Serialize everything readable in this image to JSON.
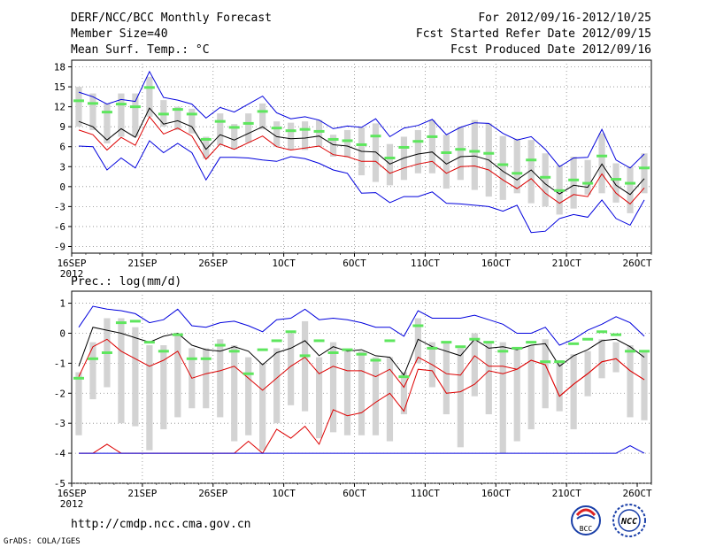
{
  "header": {
    "title": "DERF/NCC/BCC Monthly Forecast",
    "member_size": "Member Size=40",
    "variable": "Mean Surf. Temp.: °C",
    "period": "For 2012/09/16-2012/10/25",
    "started": "Fcst Started Refer Date 2012/09/15",
    "produced": "Fcst Produced Date 2012/09/16"
  },
  "footer": {
    "url": "http://cmdp.ncc.cma.gov.cn",
    "grads": "GrADS: COLA/IGES",
    "logo_bcc": "BCC",
    "logo_ncc": "NCC"
  },
  "colors": {
    "max": "#0000dd",
    "min": "#dd0000",
    "mean": "#000000",
    "ensemble": "#5ee65e",
    "box": "#d3d3d3",
    "grid": "#888888"
  },
  "chart_data": [
    {
      "type": "line",
      "title": "Mean Surf. Temp.: °C",
      "ylim": [
        -10,
        19
      ],
      "yticks": [
        18,
        15,
        12,
        9,
        6,
        3,
        0,
        -3,
        -6,
        -9
      ],
      "xticks": [
        {
          "day": 0,
          "label": "16SEP",
          "sub": "2012"
        },
        {
          "day": 5,
          "label": "21SEP"
        },
        {
          "day": 10,
          "label": "26SEP"
        },
        {
          "day": 15,
          "label": "1OCT"
        },
        {
          "day": 20,
          "label": "6OCT"
        },
        {
          "day": 25,
          "label": "11OCT"
        },
        {
          "day": 30,
          "label": "16OCT"
        },
        {
          "day": 35,
          "label": "21OCT"
        },
        {
          "day": 40,
          "label": "26OCT"
        }
      ],
      "max": [
        14.2,
        13.5,
        12.4,
        13.1,
        12.8,
        17.3,
        13.4,
        13.0,
        12.4,
        10.3,
        11.9,
        11.2,
        12.4,
        13.6,
        11.1,
        10.2,
        10.5,
        10.0,
        8.7,
        9.1,
        8.9,
        10.2,
        7.5,
        8.8,
        9.2,
        10.1,
        7.8,
        8.9,
        9.6,
        9.5,
        8.0,
        7.0,
        7.5,
        5.6,
        3.0,
        4.3,
        4.4,
        8.6,
        4.0,
        2.8,
        4.9
      ],
      "mean": [
        9.8,
        9.0,
        7.0,
        8.7,
        7.4,
        11.8,
        9.4,
        9.9,
        9.0,
        5.6,
        7.8,
        7.0,
        8.0,
        9.0,
        7.5,
        7.2,
        7.3,
        7.6,
        6.3,
        6.1,
        5.3,
        5.2,
        3.4,
        4.3,
        4.9,
        5.2,
        3.4,
        4.5,
        4.6,
        4.0,
        2.3,
        1.0,
        2.5,
        0.4,
        -1.1,
        0.2,
        -0.1,
        3.4,
        0.2,
        -1.2,
        1.2
      ],
      "min": [
        8.5,
        7.8,
        5.5,
        7.4,
        6.2,
        10.5,
        7.9,
        8.8,
        7.6,
        4.1,
        6.4,
        5.6,
        6.6,
        7.6,
        6.0,
        5.5,
        5.8,
        6.1,
        4.8,
        4.5,
        3.8,
        3.8,
        2.0,
        2.8,
        3.4,
        3.8,
        2.0,
        3.0,
        3.1,
        2.5,
        1.0,
        -0.3,
        1.2,
        -1.0,
        -2.5,
        -1.2,
        -1.5,
        1.9,
        -1.0,
        -2.6,
        -0.2
      ],
      "abs_max_line": [
        6.1,
        6.0,
        2.5,
        4.3,
        2.8,
        6.9,
        5.1,
        6.5,
        5.1,
        1.0,
        4.4,
        4.4,
        4.3,
        4.0,
        3.8,
        4.5,
        4.2,
        3.5,
        2.5,
        2.0,
        -1.0,
        -0.9,
        -2.4,
        -1.5,
        -1.5,
        -0.8,
        -2.5,
        -2.6,
        -2.8,
        -3.0,
        -3.7,
        -2.8,
        -6.9,
        -6.7,
        -4.8,
        -4.2,
        -4.6,
        -2.0,
        -4.8,
        -5.8,
        -2.0
      ],
      "box_hi": [
        15.0,
        14.0,
        12.5,
        14.0,
        14.0,
        16.5,
        13.0,
        12.0,
        11.7,
        7.5,
        11.0,
        9.4,
        11.0,
        12.5,
        9.8,
        9.6,
        9.8,
        10.0,
        7.8,
        8.5,
        8.9,
        9.5,
        6.4,
        7.5,
        8.5,
        10.0,
        7.8,
        9.0,
        10.0,
        9.5,
        7.6,
        7.2,
        7.0,
        5.0,
        3.2,
        4.5,
        4.0,
        8.0,
        3.5,
        3.0,
        5.0
      ],
      "box_lo": [
        9.0,
        8.5,
        6.5,
        7.5,
        7.5,
        10.5,
        9.0,
        8.5,
        8.0,
        4.2,
        6.2,
        5.6,
        6.6,
        8.6,
        6.0,
        5.5,
        5.5,
        6.0,
        4.5,
        4.4,
        1.7,
        0.7,
        0.2,
        1.0,
        2.0,
        2.0,
        -0.3,
        1.0,
        -0.5,
        -1.5,
        -2.0,
        -1.0,
        -2.5,
        -3.0,
        -4.2,
        -3.3,
        -1.2,
        -1.0,
        -2.4,
        -4.0,
        -1.0
      ],
      "ensemble": [
        12.9,
        12.5,
        11.2,
        12.4,
        12.0,
        14.9,
        10.9,
        11.6,
        10.9,
        7.1,
        9.8,
        8.9,
        9.5,
        11.3,
        8.8,
        8.4,
        8.6,
        8.3,
        7.1,
        6.9,
        6.3,
        7.6,
        4.3,
        5.9,
        6.8,
        7.5,
        5.1,
        5.6,
        5.3,
        5.0,
        3.3,
        2.0,
        4.0,
        1.4,
        -0.6,
        1.0,
        0.5,
        4.6,
        1.1,
        0.5,
        2.8
      ]
    },
    {
      "type": "line",
      "title": "Prec.: log(mm/d)",
      "ylim": [
        -5,
        1.4
      ],
      "yticks": [
        1,
        0,
        -1,
        -2,
        -3,
        -4,
        -5
      ],
      "xticks": [
        {
          "day": 0,
          "label": "16SEP",
          "sub": "2012"
        },
        {
          "day": 5,
          "label": "21SEP"
        },
        {
          "day": 10,
          "label": "26SEP"
        },
        {
          "day": 15,
          "label": "1OCT"
        },
        {
          "day": 20,
          "label": "6OCT"
        },
        {
          "day": 25,
          "label": "11OCT"
        },
        {
          "day": 30,
          "label": "16OCT"
        },
        {
          "day": 35,
          "label": "21OCT"
        },
        {
          "day": 40,
          "label": "26OCT"
        }
      ],
      "max": [
        0.2,
        0.9,
        0.8,
        0.75,
        0.65,
        0.35,
        0.45,
        0.8,
        0.25,
        0.2,
        0.35,
        0.4,
        0.25,
        0.05,
        0.45,
        0.5,
        0.8,
        0.45,
        0.5,
        0.45,
        0.35,
        0.2,
        0.2,
        -0.1,
        0.75,
        0.5,
        0.5,
        0.5,
        0.6,
        0.45,
        0.3,
        0.0,
        0.0,
        0.2,
        -0.4,
        -0.2,
        0.1,
        0.3,
        0.55,
        0.35,
        -0.1
      ],
      "mean": [
        -1.1,
        0.2,
        0.1,
        0.0,
        -0.15,
        -0.3,
        -0.1,
        0.0,
        -0.4,
        -0.55,
        -0.6,
        -0.45,
        -0.6,
        -1.05,
        -0.65,
        -0.5,
        -0.25,
        -0.75,
        -0.45,
        -0.6,
        -0.55,
        -0.75,
        -0.8,
        -1.4,
        -0.2,
        -0.45,
        -0.6,
        -0.75,
        -0.2,
        -0.5,
        -0.45,
        -0.55,
        -0.4,
        -0.35,
        -1.1,
        -0.75,
        -0.55,
        -0.25,
        -0.2,
        -0.45,
        -0.8
      ],
      "min": [
        -1.45,
        -0.45,
        -0.2,
        -0.6,
        -0.85,
        -1.1,
        -0.9,
        -0.6,
        -1.5,
        -1.35,
        -1.25,
        -1.1,
        -1.5,
        -1.9,
        -1.5,
        -1.1,
        -0.8,
        -1.35,
        -1.1,
        -1.25,
        -1.25,
        -1.45,
        -1.2,
        -1.8,
        -0.8,
        -1.05,
        -1.35,
        -1.4,
        -0.75,
        -1.1,
        -1.1,
        -1.2,
        -0.9,
        -1.05,
        -2.1,
        -1.7,
        -1.35,
        -0.95,
        -0.85,
        -1.25,
        -1.55
      ],
      "abs_max_line": [
        -4.0,
        -4.0,
        -3.7,
        -4.0,
        -4.0,
        -4.0,
        -4.0,
        -4.0,
        -4.0,
        -4.0,
        -4.0,
        -4.0,
        -3.6,
        -4.0,
        -3.2,
        -3.5,
        -3.1,
        -3.7,
        -2.55,
        -2.75,
        -2.65,
        -2.3,
        -2.0,
        -2.6,
        -1.2,
        -1.25,
        -2.0,
        -1.95,
        -1.7,
        -1.25,
        -1.35,
        -1.2,
        -0.9,
        -1.05,
        -2.1,
        -1.7,
        -1.35,
        -0.95,
        -0.85,
        -1.25,
        -1.55
      ],
      "abs_min_line": [
        -4.0,
        -4.0,
        -4.0,
        -4.0,
        -4.0,
        -4.0,
        -4.0,
        -4.0,
        -4.0,
        -4.0,
        -4.0,
        -4.0,
        -4.0,
        -4.0,
        -4.0,
        -4.0,
        -4.0,
        -4.0,
        -4.0,
        -4.0,
        -4.0,
        -4.0,
        -4.0,
        -4.0,
        -4.0,
        -4.0,
        -4.0,
        -4.0,
        -4.0,
        -4.0,
        -4.0,
        -4.0,
        -4.0,
        -4.0,
        -4.0,
        -4.0,
        -4.0,
        -4.0,
        -4.0,
        -3.75,
        -4.0
      ],
      "box_hi": [
        -1.3,
        -0.3,
        0.5,
        0.5,
        0.2,
        -0.4,
        -0.4,
        0.0,
        -0.5,
        -0.5,
        -0.2,
        -0.4,
        -0.8,
        -1.0,
        -0.5,
        0.0,
        0.4,
        -0.8,
        -0.3,
        -0.6,
        -0.6,
        -0.8,
        -0.8,
        -1.3,
        0.5,
        -0.3,
        -0.3,
        -0.5,
        0.0,
        -0.3,
        -0.3,
        -0.5,
        -0.4,
        -0.2,
        -0.9,
        -0.7,
        -0.6,
        -0.2,
        -0.3,
        -0.4,
        -0.6
      ],
      "box_lo": [
        -3.4,
        -2.2,
        -1.8,
        -3.0,
        -3.1,
        -3.9,
        -3.2,
        -2.8,
        -2.5,
        -2.5,
        -2.8,
        -3.6,
        -3.4,
        -3.9,
        -3.0,
        -2.4,
        -2.6,
        -3.5,
        -3.3,
        -3.4,
        -3.4,
        -3.4,
        -3.6,
        -2.7,
        -1.0,
        -1.8,
        -2.7,
        -3.8,
        -2.1,
        -2.7,
        -4.0,
        -3.6,
        -3.2,
        -2.5,
        -2.6,
        -3.2,
        -2.1,
        -1.5,
        -1.3,
        -2.8,
        -2.9
      ],
      "ensemble": [
        -1.5,
        -0.85,
        -0.65,
        0.35,
        0.4,
        -0.3,
        -0.6,
        -0.05,
        -0.85,
        -0.85,
        -0.4,
        -0.6,
        -1.35,
        -0.55,
        -0.25,
        0.05,
        -0.75,
        -0.25,
        -0.65,
        -0.55,
        -0.7,
        -0.9,
        -0.25,
        -1.45,
        0.25,
        -0.5,
        -0.3,
        -0.45,
        -0.2,
        -0.3,
        -0.6,
        -0.5,
        -0.3,
        -0.95,
        -0.95,
        -0.35,
        -0.2,
        0.05,
        -0.05,
        -0.6,
        -0.6
      ]
    }
  ]
}
